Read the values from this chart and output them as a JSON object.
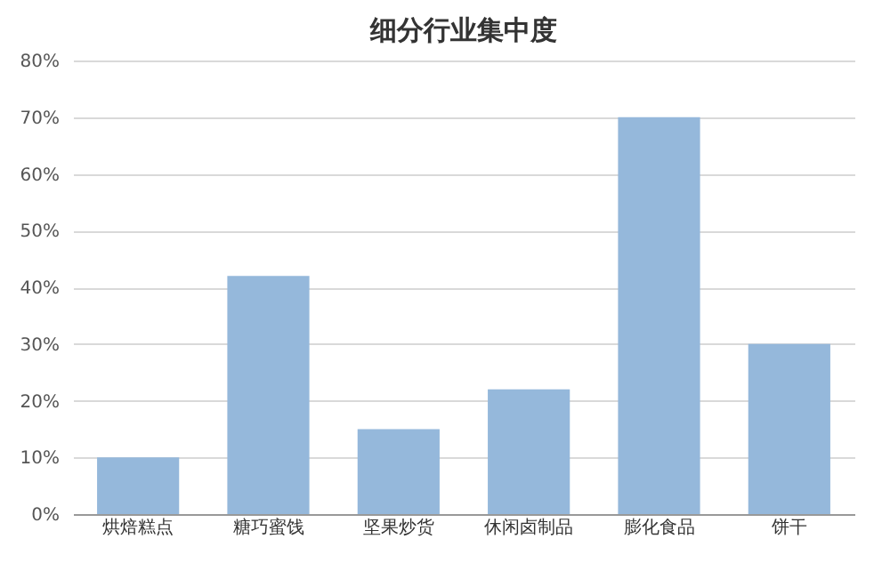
{
  "chart_data": {
    "type": "bar",
    "title": "细分行业集中度",
    "categories": [
      "烘焙糕点",
      "糖巧蜜饯",
      "坚果炒货",
      "休闲卤制品",
      "膨化食品",
      "饼干"
    ],
    "values": [
      10,
      42,
      15,
      22,
      70,
      30
    ],
    "color": "#95b8db",
    "ylim": [
      0,
      80
    ],
    "yticks": [
      {
        "value": 0,
        "label": "0%"
      },
      {
        "value": 10,
        "label": "10%"
      },
      {
        "value": 20,
        "label": "20%"
      },
      {
        "value": 30,
        "label": "30%"
      },
      {
        "value": 40,
        "label": "40%"
      },
      {
        "value": 50,
        "label": "50%"
      },
      {
        "value": 60,
        "label": "60%"
      },
      {
        "value": 70,
        "label": "70%"
      },
      {
        "value": 80,
        "label": "80%"
      }
    ],
    "grid": "y"
  }
}
